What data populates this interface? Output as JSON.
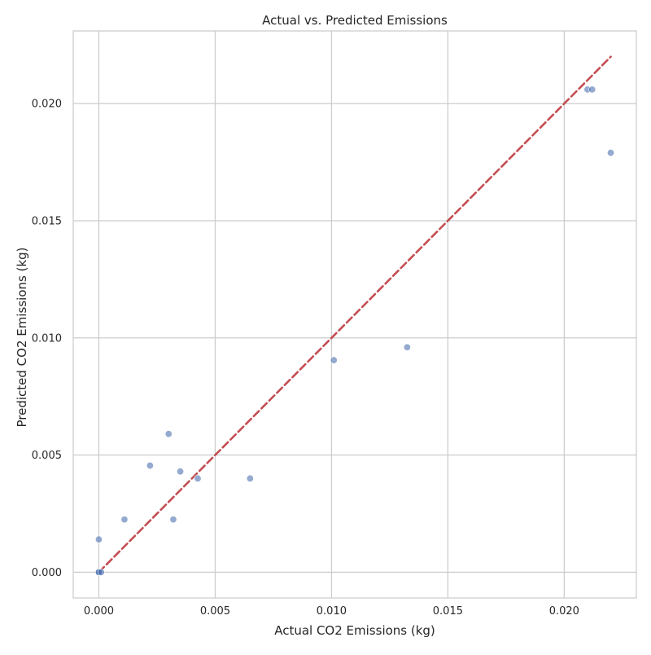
{
  "chart_data": {
    "type": "scatter",
    "title": "Actual vs. Predicted Emissions",
    "xlabel": "Actual CO2 Emissions (kg)",
    "ylabel": "Predicted CO2 Emissions (kg)",
    "xlim": [
      -0.0011,
      0.0231
    ],
    "ylim": [
      -0.0011,
      0.0231
    ],
    "xticks": [
      0.0,
      0.005,
      0.01,
      0.015,
      0.02
    ],
    "xtick_labels": [
      "0.000",
      "0.005",
      "0.010",
      "0.015",
      "0.020"
    ],
    "yticks": [
      0.0,
      0.005,
      0.01,
      0.015,
      0.02
    ],
    "ytick_labels": [
      "0.000",
      "0.005",
      "0.010",
      "0.015",
      "0.020"
    ],
    "grid": true,
    "point_color": "#4c72b0",
    "point_opacity": 0.6,
    "reference_line": {
      "x": [
        0.0,
        0.022
      ],
      "y": [
        0.0,
        0.022
      ],
      "color": "#c44e52",
      "style": "dashed"
    },
    "points": [
      {
        "x": 0.0,
        "y": 0.0
      },
      {
        "x": 0.0,
        "y": 0.0
      },
      {
        "x": 0.0,
        "y": 0.0
      },
      {
        "x": 0.0001,
        "y": 0.0
      },
      {
        "x": 0.0,
        "y": 0.0014
      },
      {
        "x": 0.0011,
        "y": 0.00225
      },
      {
        "x": 0.0022,
        "y": 0.00455
      },
      {
        "x": 0.003,
        "y": 0.0059
      },
      {
        "x": 0.0032,
        "y": 0.00225
      },
      {
        "x": 0.0035,
        "y": 0.0043
      },
      {
        "x": 0.00425,
        "y": 0.004
      },
      {
        "x": 0.0065,
        "y": 0.004
      },
      {
        "x": 0.0101,
        "y": 0.00905
      },
      {
        "x": 0.01325,
        "y": 0.0096
      },
      {
        "x": 0.021,
        "y": 0.0206
      },
      {
        "x": 0.0212,
        "y": 0.0206
      },
      {
        "x": 0.022,
        "y": 0.0179
      }
    ]
  }
}
